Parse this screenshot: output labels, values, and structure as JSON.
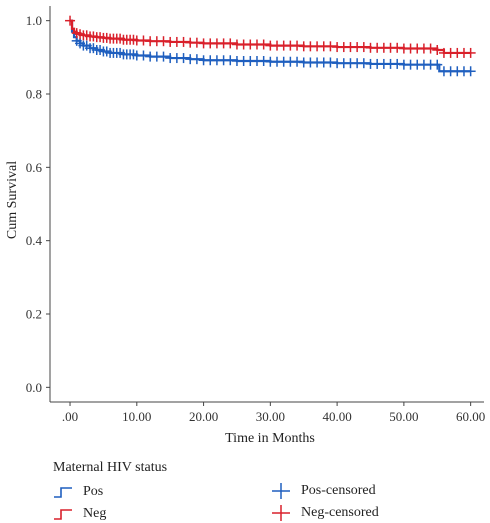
{
  "chart_data": {
    "type": "line",
    "title": "",
    "xlabel": "Time in Months",
    "ylabel": "Cum Survival",
    "xlim": [
      -3,
      62
    ],
    "ylim": [
      -0.04,
      1.04
    ],
    "x_ticks": [
      0,
      10,
      20,
      30,
      40,
      50,
      60
    ],
    "x_tick_labels": [
      ".00",
      "10.00",
      "20.00",
      "30.00",
      "40.00",
      "50.00",
      "60.00"
    ],
    "y_ticks": [
      0.0,
      0.2,
      0.4,
      0.6,
      0.8,
      1.0
    ],
    "y_tick_labels": [
      "0.0",
      "0.2",
      "0.4",
      "0.6",
      "0.8",
      "1.0"
    ],
    "grid": false,
    "legend_position": "bottom",
    "legend_title": "Maternal HIV status",
    "legend_entries": [
      "Pos",
      "Neg",
      "Pos-censored",
      "Neg-censored"
    ],
    "series": [
      {
        "name": "Pos",
        "color": "#1f5fbf",
        "x": [
          0,
          0.3,
          0.6,
          1,
          1.5,
          2,
          3,
          4,
          5,
          6,
          8,
          10,
          12,
          15,
          18,
          20,
          25,
          30,
          35,
          40,
          45,
          50,
          55,
          55.3,
          57,
          60
        ],
        "y": [
          1.0,
          0.97,
          0.955,
          0.945,
          0.938,
          0.932,
          0.925,
          0.92,
          0.916,
          0.912,
          0.908,
          0.905,
          0.902,
          0.898,
          0.895,
          0.892,
          0.89,
          0.888,
          0.886,
          0.884,
          0.882,
          0.88,
          0.88,
          0.862,
          0.862,
          0.862
        ],
        "censored_x": [
          1,
          1.5,
          2,
          2.5,
          3,
          3.5,
          4,
          4.5,
          5,
          5.5,
          6,
          6.5,
          7,
          7.5,
          8,
          8.5,
          9,
          9.5,
          10,
          11,
          12,
          13,
          14,
          15,
          16,
          17,
          18,
          19,
          20,
          21,
          22,
          23,
          24,
          25,
          26,
          27,
          28,
          29,
          30,
          31,
          32,
          33,
          34,
          35,
          36,
          37,
          38,
          39,
          40,
          41,
          42,
          43,
          44,
          45,
          46,
          47,
          48,
          49,
          50,
          51,
          52,
          53,
          54,
          55,
          56,
          57,
          58,
          59,
          60
        ]
      },
      {
        "name": "Neg",
        "color": "#d9202b",
        "x": [
          0,
          0.3,
          0.6,
          1,
          1.5,
          2,
          3,
          4,
          5,
          6,
          8,
          10,
          12,
          15,
          18,
          20,
          25,
          30,
          35,
          40,
          45,
          50,
          55,
          56,
          58,
          60
        ],
        "y": [
          1.0,
          0.978,
          0.97,
          0.966,
          0.963,
          0.96,
          0.957,
          0.955,
          0.953,
          0.951,
          0.948,
          0.946,
          0.944,
          0.942,
          0.94,
          0.938,
          0.935,
          0.932,
          0.93,
          0.928,
          0.926,
          0.924,
          0.92,
          0.912,
          0.912,
          0.912
        ],
        "censored_x": [
          0,
          1,
          1.5,
          2,
          2.5,
          3,
          3.5,
          4,
          4.5,
          5,
          5.5,
          6,
          6.5,
          7,
          7.5,
          8,
          8.5,
          9,
          9.5,
          10,
          11,
          12,
          13,
          14,
          15,
          16,
          17,
          18,
          19,
          20,
          21,
          22,
          23,
          24,
          25,
          26,
          27,
          28,
          29,
          30,
          31,
          32,
          33,
          34,
          35,
          36,
          37,
          38,
          39,
          40,
          41,
          42,
          43,
          44,
          45,
          46,
          47,
          48,
          49,
          50,
          51,
          52,
          53,
          54,
          55,
          56,
          57,
          58,
          59,
          60
        ]
      }
    ]
  }
}
